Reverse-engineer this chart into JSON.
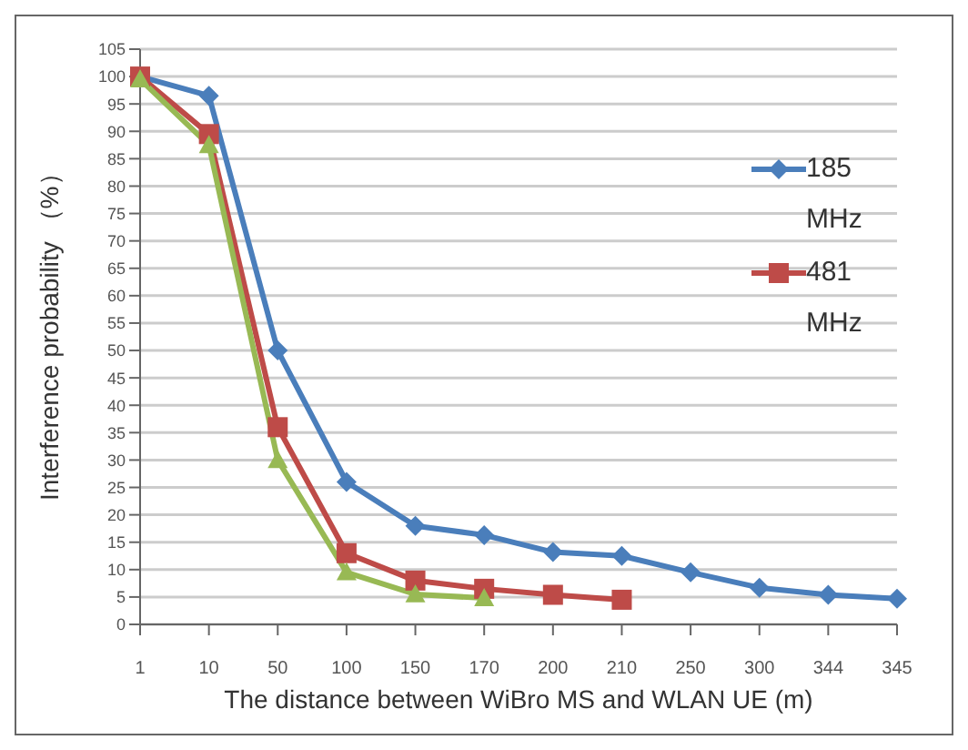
{
  "chart_data": {
    "type": "line",
    "xlabel": "The distance between WiBro MS and WLAN UE (m)",
    "ylabel": "Interference probability （%）",
    "categories": [
      "1",
      "10",
      "50",
      "100",
      "150",
      "170",
      "200",
      "210",
      "250",
      "300",
      "344",
      "345"
    ],
    "series": [
      {
        "name": "185 MHz",
        "color": "#4a7ebb",
        "marker": "diamond",
        "values": [
          100,
          96.5,
          50,
          26,
          18,
          16.3,
          13.2,
          12.5,
          9.5,
          6.7,
          5.4,
          4.7
        ]
      },
      {
        "name": "481 MHz",
        "color": "#be4b48",
        "marker": "square",
        "values": [
          100,
          89.5,
          36,
          13,
          8,
          6.5,
          5.4,
          4.5,
          null,
          null,
          null,
          null
        ]
      },
      {
        "color": "#98b954",
        "marker": "triangle",
        "values": [
          99.5,
          87.5,
          30,
          9.5,
          5.5,
          4.8,
          null,
          null,
          null,
          null,
          null,
          null
        ]
      }
    ],
    "ylim": [
      0,
      105
    ],
    "yticks": [
      0,
      5,
      10,
      15,
      20,
      25,
      30,
      35,
      40,
      45,
      50,
      55,
      60,
      65,
      70,
      75,
      80,
      85,
      90,
      95,
      100,
      105
    ],
    "grid": "y",
    "legend": "top right",
    "line_style": "solid"
  }
}
